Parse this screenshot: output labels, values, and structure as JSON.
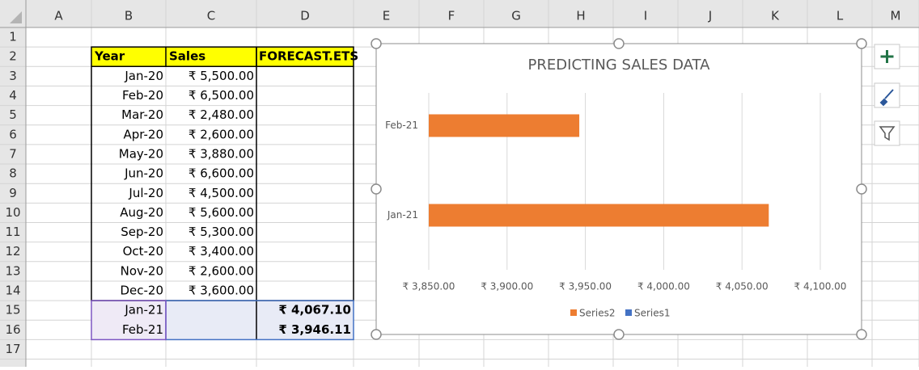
{
  "sheet": {
    "columns": [
      "A",
      "B",
      "C",
      "D",
      "E",
      "F",
      "G",
      "H",
      "I",
      "J",
      "K",
      "L",
      "M"
    ],
    "rows": [
      "1",
      "2",
      "3",
      "4",
      "5",
      "6",
      "7",
      "8",
      "9",
      "10",
      "11",
      "12",
      "13",
      "14",
      "15",
      "16",
      "17"
    ]
  },
  "table": {
    "header": [
      "Year",
      "Sales",
      "FORECAST.ETS"
    ],
    "rows": [
      {
        "year": "Jan-20",
        "sales": "₹ 5,500.00"
      },
      {
        "year": "Feb-20",
        "sales": "₹ 6,500.00"
      },
      {
        "year": "Mar-20",
        "sales": "₹ 2,480.00"
      },
      {
        "year": "Apr-20",
        "sales": "₹ 2,600.00"
      },
      {
        "year": "May-20",
        "sales": "₹ 3,880.00"
      },
      {
        "year": "Jun-20",
        "sales": "₹ 6,600.00"
      },
      {
        "year": "Jul-20",
        "sales": "₹ 4,500.00"
      },
      {
        "year": "Aug-20",
        "sales": "₹ 5,600.00"
      },
      {
        "year": "Sep-20",
        "sales": "₹ 5,300.00"
      },
      {
        "year": "Oct-20",
        "sales": "₹ 3,400.00"
      },
      {
        "year": "Nov-20",
        "sales": "₹ 2,600.00"
      },
      {
        "year": "Dec-20",
        "sales": "₹ 3,600.00"
      },
      {
        "year": "Jan-21",
        "forecast": "₹ 4,067.10"
      },
      {
        "year": "Feb-21",
        "forecast": "₹ 3,946.11"
      }
    ]
  },
  "chart_data": {
    "type": "bar",
    "orientation": "horizontal",
    "title": "PREDICTING SALES DATA",
    "categories": [
      "Jan-21",
      "Feb-21"
    ],
    "series": [
      {
        "name": "Series2",
        "color": "#ed7d31",
        "values": [
          4067.1,
          3946.11
        ]
      },
      {
        "name": "Series1",
        "color": "#4472c4",
        "values": [
          null,
          null
        ]
      }
    ],
    "xlim": [
      3850,
      4100
    ],
    "xticks": [
      {
        "value": 3850,
        "label": "₹ 3,850.00"
      },
      {
        "value": 3900,
        "label": "₹ 3,900.00"
      },
      {
        "value": 3950,
        "label": "₹ 3,950.00"
      },
      {
        "value": 4000,
        "label": "₹ 4,000.00"
      },
      {
        "value": 4050,
        "label": "₹ 4,050.00"
      },
      {
        "value": 4100,
        "label": "₹ 4,100.00"
      }
    ],
    "grid": true
  }
}
